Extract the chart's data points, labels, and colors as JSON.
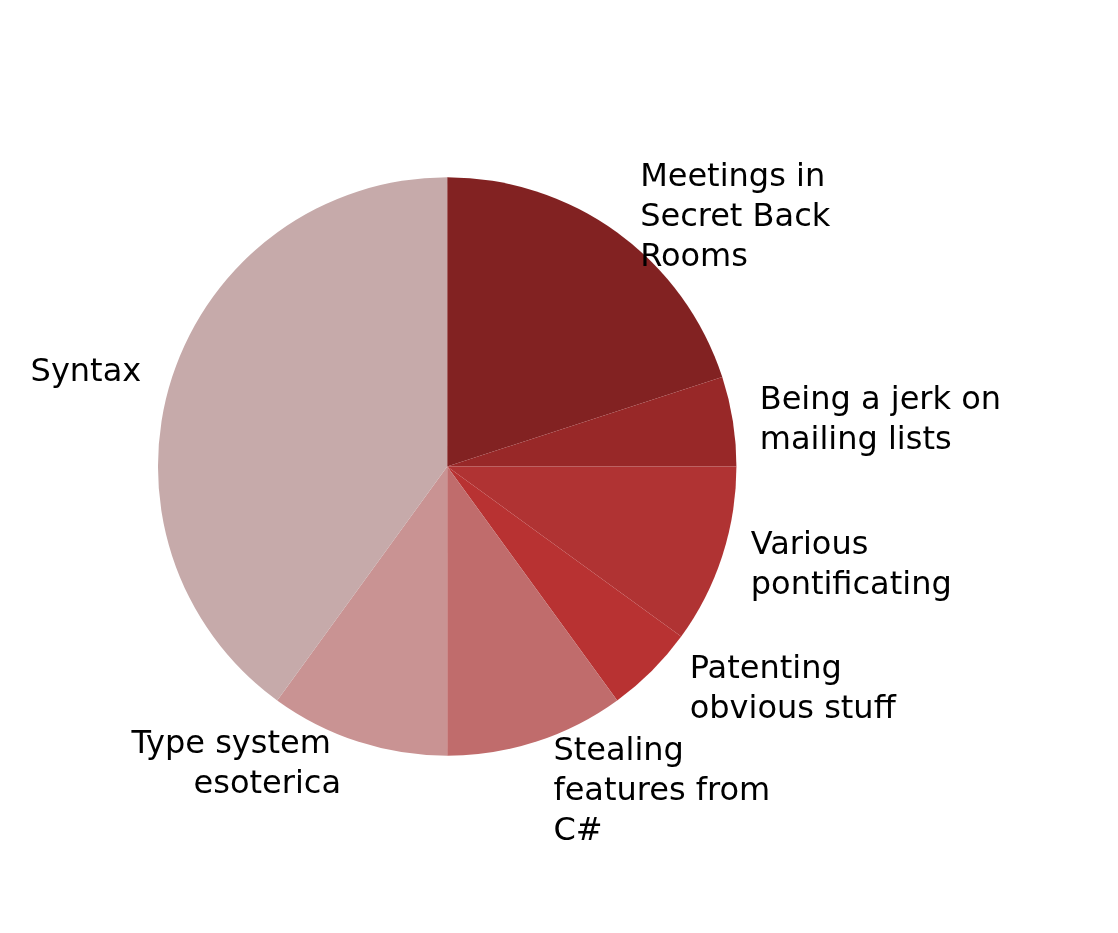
{
  "chart_data": {
    "type": "pie",
    "categories": [
      "Meetings in Secret Back Rooms",
      "Being a jerk on mailing lists",
      "Various pontificating",
      "Patenting obvious stuff",
      "Stealing features from C#",
      "Type system esoterica",
      "Syntax"
    ],
    "values": [
      20,
      5,
      10,
      5,
      10,
      10,
      40
    ],
    "colors": [
      "#822222",
      "#982828",
      "#b03333",
      "#b83232",
      "#c06c6c",
      "#c99393",
      "#c6aaaa"
    ],
    "legend": false
  }
}
